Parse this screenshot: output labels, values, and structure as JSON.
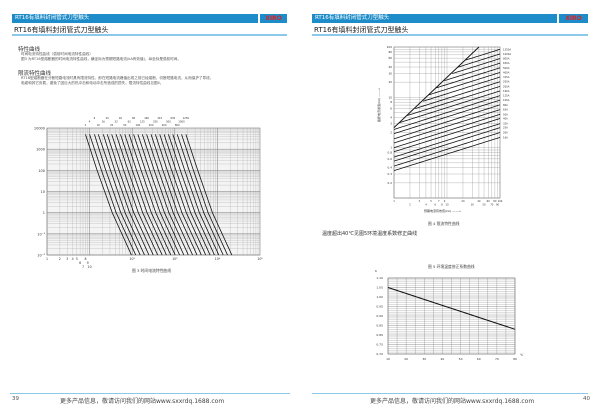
{
  "header": {
    "title": "RT16有填料封闭管式刀型触头",
    "logo": "XIRO",
    "subtitle": "RT16有填料封闭管式刀型触头"
  },
  "left": {
    "sec1_title": "特性曲线",
    "sec1_line1": "时间电流特性曲线（弧前时间电流特性曲线）",
    "sec1_line2": "图3 为RT16型熔断器的时间电流特性曲线，横坐标为预期短路电流(kA有效值)，纵坐标是弧前时间。",
    "sec2_title": "限流特性曲线",
    "sec2_line1": "RT16型熔断器在分断短路电流时具有限流特性，即在短路电流峰值出现之前已经熔断，切断短路电流，从而保护了导线、",
    "sec2_line2": "电缆和其它负载，避免了因巨大的热冲击和电动冲击所造成的损失。限流特性曲线见图4。",
    "fig3_caption": "图 3 时间电流特性曲线",
    "page_number": "39",
    "footer": "更多产品信息，敬请访问我们的网站www.sxxrdq.1688.com"
  },
  "right": {
    "fig4_caption": "图 4 限流特性曲线",
    "fig4_xlabel": "预期电流有效值(kA) ——→",
    "fig4_ylabel": "截断电流峰值(kA) ——→",
    "temp_note": "温度超出40℃见图5环境温度系数修正曲线",
    "fig5_caption": "图 5 环境温度修正系数曲线",
    "fig5_ylabel": "K",
    "fig5_xunit": "℃",
    "page_number": "40",
    "footer": "更多产品信息，敬请访问我们的网站www.sxxrdq.1688.com"
  },
  "colors": {
    "header": "#1e8cc8",
    "rule": "#8cc8ea",
    "curve": "#111111"
  },
  "chart_data": [
    {
      "type": "line",
      "title": "图 3 时间电流特性曲线",
      "xscale": "log",
      "yscale": "log",
      "xlim": [
        1,
        100000
      ],
      "ylim": [
        0.01,
        10000
      ],
      "xticks": [
        "1",
        "2",
        "3",
        "4",
        "5",
        "6",
        "7",
        "8",
        "9",
        "10",
        "10²",
        "10³",
        "10⁴",
        "10⁵"
      ],
      "yticks": [
        "10000",
        "1000",
        "100",
        "10",
        "1",
        "10⁻¹",
        "10⁻²"
      ],
      "times": [
        5000,
        100,
        1,
        0.01
      ],
      "series": [
        {
          "name": "2",
          "currents": [
            8,
            15,
            34,
            96
          ]
        },
        {
          "name": "4",
          "currents": [
            10,
            19,
            42,
            121
          ]
        },
        {
          "name": "6",
          "currents": [
            13,
            24,
            54,
            154
          ]
        },
        {
          "name": "10",
          "currents": [
            16,
            31,
            68,
            194
          ]
        },
        {
          "name": "16",
          "currents": [
            21,
            39,
            87,
            247
          ]
        },
        {
          "name": "20",
          "currents": [
            26,
            49,
            109,
            312
          ]
        },
        {
          "name": "25",
          "currents": [
            33,
            63,
            139,
            396
          ]
        },
        {
          "name": "32",
          "currents": [
            42,
            80,
            176,
            504
          ]
        },
        {
          "name": "40",
          "currents": [
            53,
            101,
            223,
            636
          ]
        },
        {
          "name": "50",
          "currents": [
            67,
            127,
            281,
            804
          ]
        },
        {
          "name": "63",
          "currents": [
            85,
            162,
            357,
            1020
          ]
        },
        {
          "name": "80",
          "currents": [
            108,
            205,
            454,
            1296
          ]
        },
        {
          "name": "100",
          "currents": [
            136,
            258,
            571,
            1632
          ]
        },
        {
          "name": "125",
          "currents": [
            173,
            329,
            727,
            2076
          ]
        },
        {
          "name": "160",
          "currents": [
            218,
            414,
            916,
            2616
          ]
        },
        {
          "name": "200",
          "currents": [
            277,
            526,
            1163,
            3324
          ]
        },
        {
          "name": "250",
          "currents": [
            350,
            665,
            1470,
            4200
          ]
        },
        {
          "name": "315",
          "currents": [
            443,
            842,
            1861,
            5316
          ]
        },
        {
          "name": "400",
          "currents": [
            561,
            1066,
            2356,
            6732
          ]
        },
        {
          "name": "500",
          "currents": [
            710,
            1349,
            2982,
            8520
          ]
        },
        {
          "name": "630",
          "currents": [
            899,
            1708,
            3776,
            10788
          ]
        },
        {
          "name": "800",
          "currents": [
            1140,
            2166,
            4788,
            13680
          ]
        },
        {
          "name": "1000",
          "currents": [
            1440,
            2736,
            6048,
            17280
          ]
        },
        {
          "name": "1250",
          "currents": [
            1820,
            3458,
            7644,
            21840
          ]
        }
      ]
    },
    {
      "type": "line",
      "title": "图 4 限流特性曲线",
      "xscale": "log",
      "yscale": "log",
      "xlim": [
        1,
        100
      ],
      "ylim": [
        0.1,
        100
      ],
      "xticks": [
        "1",
        "2",
        "3",
        "4",
        "5",
        "6",
        "7",
        "8",
        "9",
        "10",
        "20",
        "30",
        "40",
        "50",
        "60",
        "70",
        "80",
        "90",
        "100"
      ],
      "yticks": [
        "100",
        "80",
        "60",
        "40",
        "30",
        "20",
        "10",
        "8",
        "6",
        "4",
        "3",
        "2",
        "1",
        "0.8",
        "0.6",
        "0.4",
        "0.3",
        "0.2"
      ],
      "max_peak_line": [
        [
          1,
          2.5
        ],
        [
          40,
          100
        ]
      ],
      "series": [
        {
          "name": "1250A",
          "points": [
            [
              1,
              19.6
            ],
            [
              100,
              90
            ]
          ]
        },
        {
          "name": "1000A",
          "points": [
            [
              1,
              15.8
            ],
            [
              100,
              72.8
            ]
          ]
        },
        {
          "name": "800A",
          "points": [
            [
              1,
              12.8
            ],
            [
              100,
              58.9
            ]
          ]
        },
        {
          "name": "630A",
          "points": [
            [
              1,
              10.4
            ],
            [
              100,
              47.7
            ]
          ]
        },
        {
          "name": "500A",
          "points": [
            [
              1,
              8.4
            ],
            [
              100,
              38.6
            ]
          ]
        },
        {
          "name": "400A",
          "points": [
            [
              1,
              6.8
            ],
            [
              100,
              31.2
            ]
          ]
        },
        {
          "name": "315A",
          "points": [
            [
              1,
              5.5
            ],
            [
              100,
              25.3
            ]
          ]
        },
        {
          "name": "250A",
          "points": [
            [
              1,
              4.4
            ],
            [
              100,
              20.4
            ]
          ]
        },
        {
          "name": "200A",
          "points": [
            [
              1,
              3.6
            ],
            [
              100,
              16.5
            ]
          ]
        },
        {
          "name": "160A",
          "points": [
            [
              1,
              2.9
            ],
            [
              100,
              13.4
            ]
          ]
        },
        {
          "name": "125A",
          "points": [
            [
              1,
              2.3
            ],
            [
              100,
              10.8
            ]
          ]
        },
        {
          "name": "100A",
          "points": [
            [
              1,
              1.9
            ],
            [
              100,
              8.8
            ]
          ]
        },
        {
          "name": "80A",
          "points": [
            [
              1,
              1.5
            ],
            [
              100,
              7.1
            ]
          ]
        },
        {
          "name": "63A",
          "points": [
            [
              1,
              1.24
            ],
            [
              100,
              5.7
            ]
          ]
        },
        {
          "name": "50A",
          "points": [
            [
              1,
              1.0
            ],
            [
              100,
              4.6
            ]
          ]
        },
        {
          "name": "40A",
          "points": [
            [
              1,
              0.83
            ],
            [
              100,
              3.8
            ]
          ]
        },
        {
          "name": "32A",
          "points": [
            [
              1,
              0.65
            ],
            [
              100,
              3.0
            ]
          ]
        },
        {
          "name": "25A",
          "points": [
            [
              1,
              0.54
            ],
            [
              100,
              2.5
            ]
          ]
        },
        {
          "name": "20A",
          "points": [
            [
              1,
              0.43
            ],
            [
              100,
              2.0
            ]
          ]
        },
        {
          "name": "16A",
          "points": [
            [
              1,
              0.35
            ],
            [
              100,
              1.6
            ]
          ]
        }
      ]
    },
    {
      "type": "line",
      "title": "图 5 环境温度修正系数曲线",
      "xlabel": "℃",
      "ylabel": "K",
      "xlim": [
        10,
        80
      ],
      "ylim": [
        0.7,
        1.1
      ],
      "xticks": [
        "10",
        "20",
        "30",
        "40",
        "50",
        "60",
        "70",
        "80"
      ],
      "yticks": [
        "1.10",
        "1.05",
        "1.00",
        "0.95",
        "0.90",
        "0.85",
        "0.80",
        "0.75",
        "0.70"
      ],
      "x": [
        10,
        80
      ],
      "y": [
        1.05,
        0.83
      ]
    }
  ]
}
